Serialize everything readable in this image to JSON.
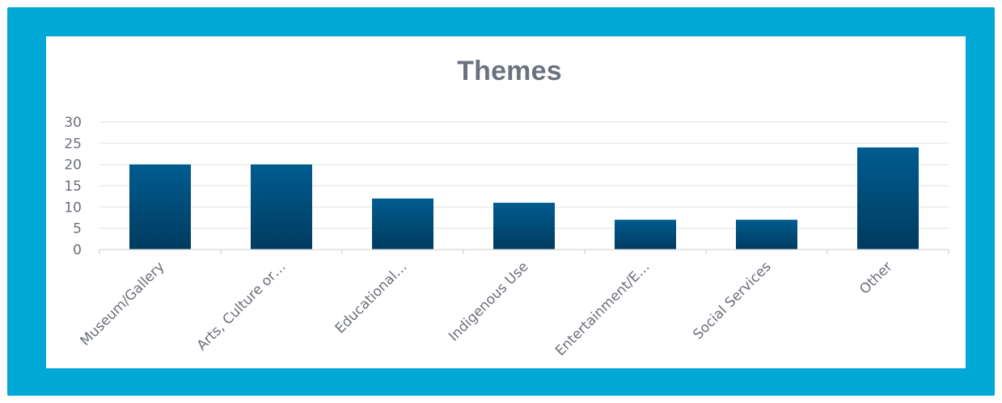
{
  "colors": {
    "border": "#00a8d6",
    "bar_top": "#005c8f",
    "bar_bottom": "#003b60",
    "title": "#6a737d",
    "text": "#6a6f78",
    "grid": "#e6e6e6"
  },
  "chart_data": {
    "type": "bar",
    "title": "Themes",
    "xlabel": "",
    "ylabel": "",
    "categories": [
      "Museum/Gallery",
      "Arts, Culture or…",
      "Educational…",
      "Indigenous Use",
      "Entertainment/E…",
      "Social Services",
      "Other"
    ],
    "values": [
      20,
      20,
      12,
      11,
      7,
      7,
      24
    ],
    "ylim": [
      0,
      30
    ],
    "yticks": [
      "0",
      "5",
      "10",
      "15",
      "20",
      "25",
      "30"
    ],
    "grid": true,
    "legend": "none"
  }
}
